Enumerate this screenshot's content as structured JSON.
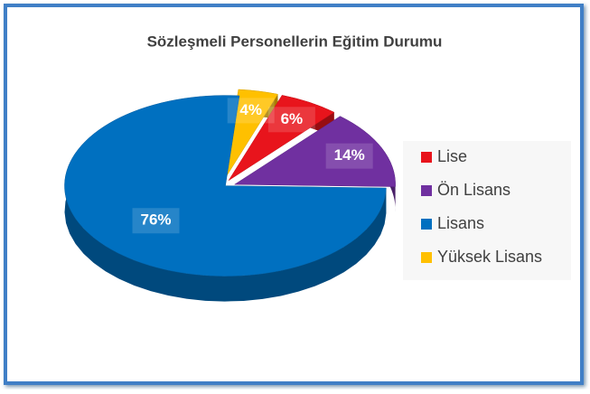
{
  "chart_data": {
    "type": "pie",
    "title": "Sözleşmeli Personellerin Eğitim Durumu",
    "categories": [
      "Lise",
      "Ön Lisans",
      "Lisans",
      "Yüksek Lisans"
    ],
    "values": [
      6,
      14,
      76,
      4
    ],
    "value_labels": [
      "6%",
      "14%",
      "76%",
      "4%"
    ],
    "colors": [
      "#e8141c",
      "#7030a0",
      "#0070c0",
      "#ffc000"
    ],
    "legend": "right"
  }
}
